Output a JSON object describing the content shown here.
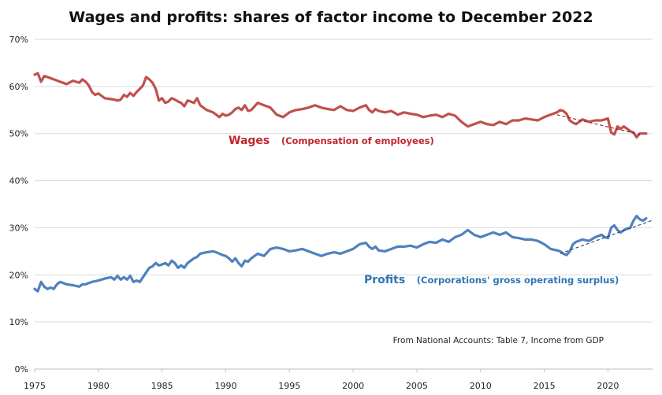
{
  "chart_data": {
    "type": "line",
    "title": "Wages and profits: shares of factor income to December 2022",
    "xlabel": "",
    "ylabel": "",
    "xlim": [
      1975,
      2023.5
    ],
    "ylim": [
      0,
      70
    ],
    "x_ticks": [
      "1975",
      "1980",
      "1985",
      "1990",
      "1995",
      "2000",
      "2005",
      "2010",
      "2015",
      "2020"
    ],
    "y_ticks": [
      "0%",
      "10%",
      "20%",
      "30%",
      "40%",
      "50%",
      "60%",
      "70%"
    ],
    "grid": "horizontal",
    "legend": "none",
    "annotations": {
      "wages_name": "Wages",
      "wages_desc": "(Compensation of employees)",
      "profits_name": "Profits",
      "profits_desc": "(Corporations' gross operating surplus)",
      "source": "From National Accounts: Table 7, Income from GDP"
    },
    "colors": {
      "wages": "#c0504d",
      "profits": "#4f81bd",
      "wages_text": "#c0272d",
      "profits_text": "#2e75b6"
    },
    "series": [
      {
        "key": "wages",
        "x": [
          1975.0,
          1975.25,
          1975.5,
          1975.75,
          1976.0,
          1976.5,
          1977.0,
          1977.5,
          1978.0,
          1978.5,
          1978.75,
          1979.0,
          1979.25,
          1979.5,
          1979.75,
          1980.0,
          1980.5,
          1981.0,
          1981.25,
          1981.5,
          1981.75,
          1982.0,
          1982.25,
          1982.5,
          1982.75,
          1983.0,
          1983.25,
          1983.5,
          1983.75,
          1984.0,
          1984.25,
          1984.5,
          1984.75,
          1985.0,
          1985.25,
          1985.5,
          1985.75,
          1986.0,
          1986.25,
          1986.5,
          1986.75,
          1987.0,
          1987.25,
          1987.5,
          1987.75,
          1988.0,
          1988.5,
          1989.0,
          1989.25,
          1989.5,
          1989.75,
          1990.0,
          1990.25,
          1990.5,
          1990.75,
          1991.0,
          1991.25,
          1991.5,
          1991.75,
          1992.0,
          1992.5,
          1993.0,
          1993.5,
          1994.0,
          1994.5,
          1995.0,
          1995.5,
          1996.0,
          1996.5,
          1997.0,
          1997.5,
          1998.0,
          1998.5,
          1999.0,
          1999.5,
          2000.0,
          2000.5,
          2001.0,
          2001.25,
          2001.5,
          2001.75,
          2002.0,
          2002.5,
          2003.0,
          2003.5,
          2004.0,
          2004.5,
          2005.0,
          2005.5,
          2006.0,
          2006.5,
          2007.0,
          2007.5,
          2008.0,
          2008.5,
          2009.0,
          2009.5,
          2010.0,
          2010.5,
          2011.0,
          2011.5,
          2012.0,
          2012.5,
          2013.0,
          2013.5,
          2014.0,
          2014.5,
          2015.0,
          2015.5,
          2016.0,
          2016.25,
          2016.5,
          2016.75,
          2017.0,
          2017.25,
          2017.5,
          2018.0,
          2018.5,
          2019.0,
          2019.5,
          2019.75,
          2020.0,
          2020.25,
          2020.5,
          2020.75,
          2021.0,
          2021.25,
          2021.5,
          2021.75,
          2022.0,
          2022.25,
          2022.5,
          2022.75,
          2023.0
        ],
        "values": [
          62.5,
          62.8,
          61.0,
          62.2,
          62.0,
          61.5,
          61.0,
          60.5,
          61.2,
          60.8,
          61.5,
          61.0,
          60.2,
          58.8,
          58.2,
          58.5,
          57.5,
          57.3,
          57.2,
          57.0,
          57.2,
          58.2,
          57.8,
          58.6,
          58.0,
          58.8,
          59.5,
          60.2,
          62.0,
          61.5,
          60.8,
          59.5,
          57.0,
          57.5,
          56.5,
          56.8,
          57.5,
          57.2,
          56.8,
          56.5,
          55.8,
          57.0,
          56.8,
          56.5,
          57.5,
          56.0,
          55.0,
          54.5,
          54.0,
          53.5,
          54.2,
          53.8,
          54.0,
          54.5,
          55.2,
          55.5,
          55.0,
          56.0,
          54.8,
          55.0,
          56.5,
          56.0,
          55.5,
          54.0,
          53.5,
          54.5,
          55.0,
          55.2,
          55.5,
          56.0,
          55.5,
          55.2,
          55.0,
          55.8,
          55.0,
          54.8,
          55.5,
          56.0,
          55.0,
          54.5,
          55.2,
          54.8,
          54.5,
          54.8,
          54.0,
          54.5,
          54.2,
          54.0,
          53.5,
          53.8,
          54.0,
          53.5,
          54.2,
          53.8,
          52.5,
          51.5,
          52.0,
          52.5,
          52.0,
          51.8,
          52.5,
          52.0,
          52.8,
          52.8,
          53.2,
          53.0,
          52.8,
          53.5,
          54.0,
          54.5,
          55.0,
          54.8,
          54.2,
          52.8,
          52.3,
          52.0,
          53.0,
          52.5,
          52.8,
          52.8,
          53.0,
          53.2,
          50.2,
          49.8,
          51.5,
          51.0,
          51.5,
          51.0,
          50.5,
          50.2,
          49.2,
          50.0,
          50.0,
          50.0
        ]
      },
      {
        "key": "profits",
        "x": [
          1975.0,
          1975.25,
          1975.5,
          1975.75,
          1976.0,
          1976.25,
          1976.5,
          1976.75,
          1977.0,
          1977.5,
          1978.0,
          1978.5,
          1978.75,
          1979.0,
          1979.5,
          1980.0,
          1980.5,
          1981.0,
          1981.25,
          1981.5,
          1981.75,
          1982.0,
          1982.25,
          1982.5,
          1982.75,
          1983.0,
          1983.25,
          1983.5,
          1983.75,
          1984.0,
          1984.25,
          1984.5,
          1984.75,
          1985.0,
          1985.25,
          1985.5,
          1985.75,
          1986.0,
          1986.25,
          1986.5,
          1986.75,
          1987.0,
          1987.25,
          1987.5,
          1987.75,
          1988.0,
          1988.5,
          1989.0,
          1989.25,
          1989.5,
          1989.75,
          1990.0,
          1990.25,
          1990.5,
          1990.75,
          1991.0,
          1991.25,
          1991.5,
          1991.75,
          1992.0,
          1992.5,
          1993.0,
          1993.5,
          1994.0,
          1994.5,
          1995.0,
          1995.5,
          1996.0,
          1996.5,
          1997.0,
          1997.5,
          1998.0,
          1998.5,
          1999.0,
          1999.5,
          2000.0,
          2000.5,
          2001.0,
          2001.25,
          2001.5,
          2001.75,
          2002.0,
          2002.5,
          2003.0,
          2003.5,
          2004.0,
          2004.5,
          2005.0,
          2005.5,
          2006.0,
          2006.5,
          2007.0,
          2007.5,
          2008.0,
          2008.5,
          2009.0,
          2009.5,
          2010.0,
          2010.5,
          2011.0,
          2011.5,
          2012.0,
          2012.5,
          2013.0,
          2013.5,
          2014.0,
          2014.5,
          2015.0,
          2015.5,
          2016.0,
          2016.25,
          2016.5,
          2016.75,
          2017.0,
          2017.25,
          2017.5,
          2018.0,
          2018.5,
          2019.0,
          2019.5,
          2019.75,
          2020.0,
          2020.25,
          2020.5,
          2020.75,
          2021.0,
          2021.25,
          2021.5,
          2021.75,
          2022.0,
          2022.25,
          2022.5,
          2022.75,
          2023.0
        ],
        "values": [
          17.0,
          16.5,
          18.5,
          17.5,
          17.0,
          17.3,
          17.0,
          18.0,
          18.5,
          18.0,
          17.8,
          17.5,
          18.0,
          18.0,
          18.5,
          18.8,
          19.2,
          19.5,
          19.0,
          19.8,
          19.0,
          19.5,
          19.0,
          19.8,
          18.5,
          18.8,
          18.5,
          19.5,
          20.5,
          21.5,
          21.8,
          22.5,
          22.0,
          22.2,
          22.5,
          22.0,
          23.0,
          22.5,
          21.5,
          22.0,
          21.5,
          22.5,
          23.0,
          23.5,
          23.8,
          24.5,
          24.8,
          25.0,
          24.8,
          24.5,
          24.2,
          24.0,
          23.5,
          22.8,
          23.5,
          22.5,
          21.8,
          23.0,
          22.8,
          23.5,
          24.5,
          24.0,
          25.5,
          25.8,
          25.5,
          25.0,
          25.2,
          25.5,
          25.0,
          24.5,
          24.0,
          24.5,
          24.8,
          24.5,
          25.0,
          25.5,
          26.5,
          26.8,
          26.0,
          25.5,
          26.0,
          25.2,
          25.0,
          25.5,
          26.0,
          26.0,
          26.2,
          25.8,
          26.5,
          27.0,
          26.8,
          27.5,
          27.0,
          28.0,
          28.5,
          29.5,
          28.5,
          28.0,
          28.5,
          29.0,
          28.5,
          29.0,
          28.0,
          27.8,
          27.5,
          27.5,
          27.2,
          26.5,
          25.5,
          25.2,
          25.0,
          24.5,
          24.2,
          25.0,
          26.5,
          27.0,
          27.5,
          27.2,
          28.0,
          28.5,
          28.0,
          27.8,
          30.0,
          30.5,
          29.5,
          29.0,
          29.5,
          29.8,
          30.0,
          31.5,
          32.5,
          31.8,
          31.5,
          32.0
        ]
      }
    ],
    "trend_lines": [
      {
        "series": "wages",
        "x": [
          2016.0,
          2022.5
        ],
        "values": [
          54.0,
          49.8
        ]
      },
      {
        "series": "profits",
        "x": [
          2016.25,
          2023.5
        ],
        "values": [
          24.5,
          31.6
        ]
      }
    ]
  }
}
